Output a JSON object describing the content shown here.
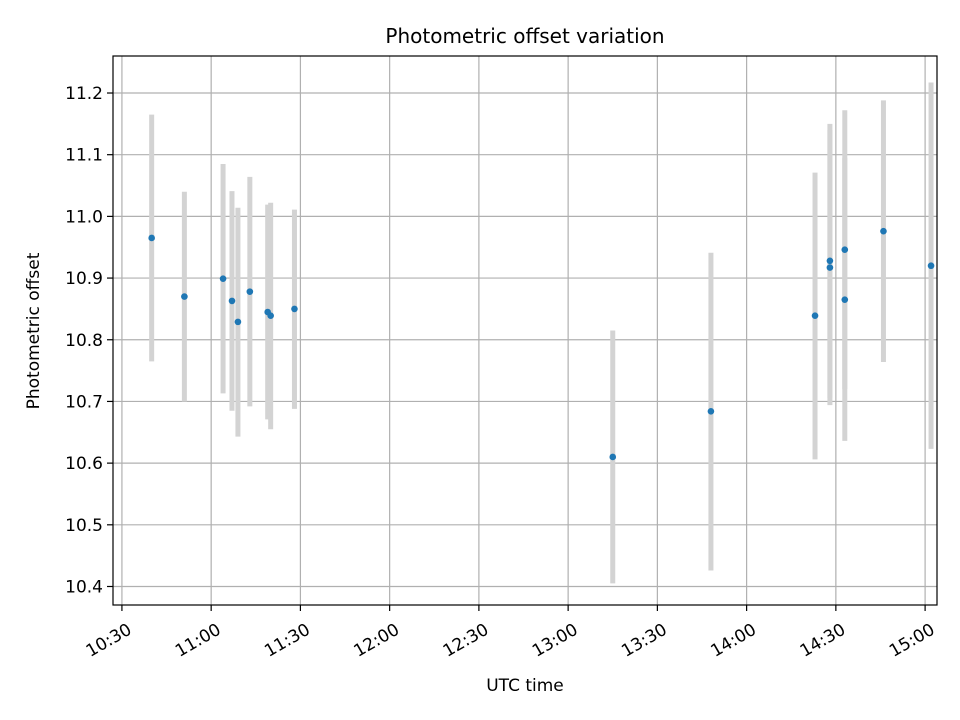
{
  "chart_data": {
    "type": "scatter",
    "title": "Photometric offset variation",
    "xlabel": "UTC time",
    "ylabel": "Photometric offset",
    "xlim": [
      "10:27",
      "15:04"
    ],
    "ylim": [
      10.37,
      11.26
    ],
    "grid": true,
    "x_ticks": [
      "10:30",
      "11:00",
      "11:30",
      "12:00",
      "12:30",
      "13:00",
      "13:30",
      "14:00",
      "14:30",
      "15:00"
    ],
    "y_ticks": [
      "10.4",
      "10.5",
      "10.6",
      "10.7",
      "10.8",
      "10.9",
      "11.0",
      "11.1",
      "11.2"
    ],
    "series": [
      {
        "color": "#1f77b4",
        "errorbar_color": "#d3d3d3",
        "points": [
          {
            "t": "10:40",
            "y": 10.965,
            "y_low": 10.765,
            "y_high": 11.165
          },
          {
            "t": "10:51",
            "y": 10.87,
            "y_low": 10.7,
            "y_high": 11.04
          },
          {
            "t": "11:04",
            "y": 10.899,
            "y_low": 10.713,
            "y_high": 11.085
          },
          {
            "t": "11:07",
            "y": 10.863,
            "y_low": 10.685,
            "y_high": 11.041
          },
          {
            "t": "11:09",
            "y": 10.829,
            "y_low": 10.643,
            "y_high": 11.014
          },
          {
            "t": "11:13",
            "y": 10.878,
            "y_low": 10.692,
            "y_high": 11.064
          },
          {
            "t": "11:19",
            "y": 10.845,
            "y_low": 10.671,
            "y_high": 11.019
          },
          {
            "t": "11:20",
            "y": 10.839,
            "y_low": 10.655,
            "y_high": 11.022
          },
          {
            "t": "11:28",
            "y": 10.85,
            "y_low": 10.688,
            "y_high": 11.011
          },
          {
            "t": "13:15",
            "y": 10.61,
            "y_low": 10.405,
            "y_high": 10.815
          },
          {
            "t": "13:48",
            "y": 10.684,
            "y_low": 10.426,
            "y_high": 10.941
          },
          {
            "t": "14:23",
            "y": 10.839,
            "y_low": 10.606,
            "y_high": 11.071
          },
          {
            "t": "14:28",
            "y": 10.928,
            "y_low": 10.706,
            "y_high": 11.15
          },
          {
            "t": "14:28",
            "y": 10.917,
            "y_low": 10.694,
            "y_high": 11.14
          },
          {
            "t": "14:33",
            "y": 10.865,
            "y_low": 10.636,
            "y_high": 11.095
          },
          {
            "t": "14:33",
            "y": 10.946,
            "y_low": 10.72,
            "y_high": 11.172
          },
          {
            "t": "14:46",
            "y": 10.976,
            "y_low": 10.764,
            "y_high": 11.188
          },
          {
            "t": "15:02",
            "y": 10.92,
            "y_low": 10.623,
            "y_high": 11.217
          }
        ]
      }
    ]
  }
}
